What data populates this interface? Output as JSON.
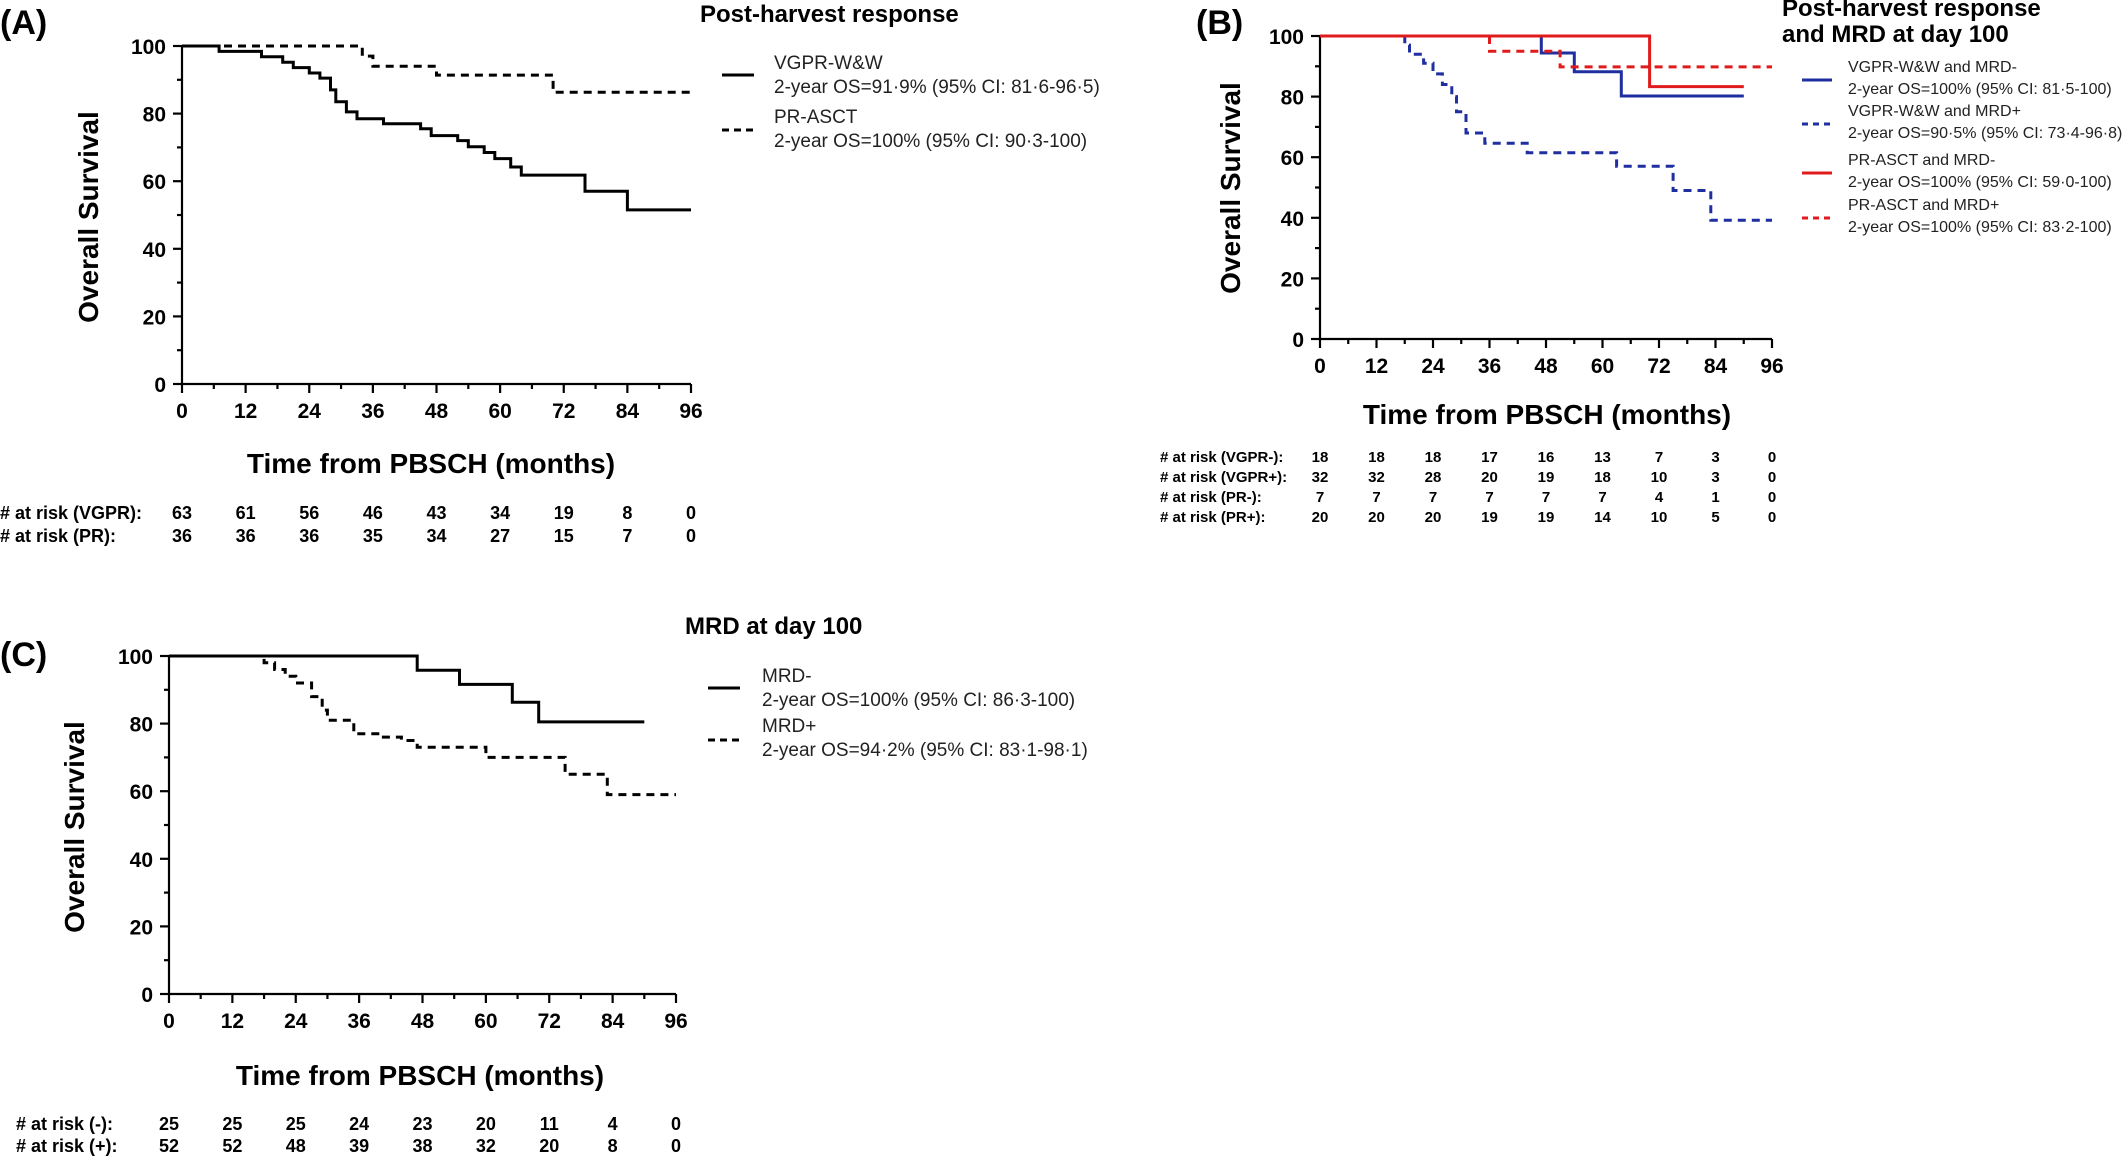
{
  "chart_data": [
    {
      "panel": "(A)",
      "type": "line",
      "title": "Post-harvest response",
      "xlabel": "Time from PBSCH (months)",
      "ylabel": "Overall Survival",
      "xlim": [
        0,
        96
      ],
      "ylim": [
        0,
        100
      ],
      "x_ticks": [
        "0",
        "12",
        "24",
        "36",
        "48",
        "60",
        "72",
        "84",
        "96"
      ],
      "y_ticks": [
        "0",
        "20",
        "40",
        "60",
        "80",
        "100"
      ],
      "legend_position": "right",
      "series": [
        {
          "name": "VGPR-W&W",
          "legend_text": "2-year OS=91·9% (95% CI: 81·6-96·5)",
          "color": "#000000",
          "dash": "solid",
          "points": [
            [
              0,
              100
            ],
            [
              7,
              100
            ],
            [
              7,
              98.4
            ],
            [
              15,
              98.4
            ],
            [
              15,
              96.8
            ],
            [
              19,
              96.8
            ],
            [
              19,
              95.2
            ],
            [
              21,
              95.2
            ],
            [
              21,
              93.6
            ],
            [
              24,
              93.6
            ],
            [
              24,
              92
            ],
            [
              26,
              92
            ],
            [
              26,
              90.5
            ],
            [
              28,
              90.5
            ],
            [
              28,
              87
            ],
            [
              29,
              87
            ],
            [
              29,
              83.5
            ],
            [
              31,
              83.5
            ],
            [
              31,
              80.5
            ],
            [
              33,
              80.5
            ],
            [
              33,
              78.5
            ],
            [
              38,
              78.5
            ],
            [
              38,
              77
            ],
            [
              45,
              77
            ],
            [
              45,
              75.5
            ],
            [
              47,
              75.5
            ],
            [
              47,
              73.5
            ],
            [
              52,
              73.5
            ],
            [
              52,
              72
            ],
            [
              54,
              72
            ],
            [
              54,
              70.2
            ],
            [
              57,
              70.2
            ],
            [
              57,
              68.5
            ],
            [
              59,
              68.5
            ],
            [
              59,
              66.7
            ],
            [
              62,
              66.7
            ],
            [
              62,
              64.2
            ],
            [
              64,
              64.2
            ],
            [
              64,
              61.8
            ],
            [
              76,
              61.8
            ],
            [
              76,
              57
            ],
            [
              84,
              57
            ],
            [
              84,
              51.5
            ],
            [
              96,
              51.5
            ]
          ]
        },
        {
          "name": "PR-ASCT",
          "legend_text": "2-year OS=100% (95% CI: 90·3-100)",
          "color": "#000000",
          "dash": "dashed",
          "points": [
            [
              0,
              100
            ],
            [
              34,
              100
            ],
            [
              34,
              97
            ],
            [
              36,
              97
            ],
            [
              36,
              94
            ],
            [
              48,
              94
            ],
            [
              48,
              91.4
            ],
            [
              70,
              91.4
            ],
            [
              70,
              86.3
            ],
            [
              96,
              86.3
            ]
          ]
        }
      ],
      "risk_table": {
        "rows": [
          {
            "label": "# at risk (VGPR):",
            "values": [
              "63",
              "61",
              "56",
              "46",
              "43",
              "34",
              "19",
              "8",
              "0"
            ]
          },
          {
            "label": "# at risk (PR):",
            "values": [
              "36",
              "36",
              "36",
              "35",
              "34",
              "27",
              "15",
              "7",
              "0"
            ]
          }
        ]
      }
    },
    {
      "panel": "(B)",
      "type": "line",
      "title_lines": [
        "Post-harvest response",
        "and MRD at day 100"
      ],
      "xlabel": "Time from PBSCH (months)",
      "ylabel": "Overall Survival",
      "xlim": [
        0,
        96
      ],
      "ylim": [
        0,
        100
      ],
      "x_ticks": [
        "0",
        "12",
        "24",
        "36",
        "48",
        "60",
        "72",
        "84",
        "96"
      ],
      "y_ticks": [
        "0",
        "20",
        "40",
        "60",
        "80",
        "100"
      ],
      "legend_position": "right",
      "series": [
        {
          "name": "VGPR-W&W and MRD-",
          "legend_text": "2-year OS=100% (95% CI: 81·5-100)",
          "color": "#1f2fa0",
          "dash": "solid",
          "points": [
            [
              0,
              100
            ],
            [
              47,
              100
            ],
            [
              47,
              94.4
            ],
            [
              54,
              94.4
            ],
            [
              54,
              88.2
            ],
            [
              64,
              88.2
            ],
            [
              64,
              80.2
            ],
            [
              90,
              80.2
            ]
          ]
        },
        {
          "name": "VGPR-W&W and MRD+",
          "legend_text": "2-year OS=90·5% (95% CI: 73·4-96·8)",
          "color": "#1f2fa0",
          "dash": "dashed",
          "points": [
            [
              0,
              100
            ],
            [
              18,
              100
            ],
            [
              18,
              97
            ],
            [
              19,
              97
            ],
            [
              19,
              94
            ],
            [
              22,
              94
            ],
            [
              22,
              91
            ],
            [
              24,
              91
            ],
            [
              24,
              87.5
            ],
            [
              26,
              87.5
            ],
            [
              26,
              84
            ],
            [
              28,
              84
            ],
            [
              28,
              80
            ],
            [
              29,
              80
            ],
            [
              29,
              75
            ],
            [
              31,
              75
            ],
            [
              31,
              68
            ],
            [
              35,
              68
            ],
            [
              35,
              64.6
            ],
            [
              44,
              64.6
            ],
            [
              44,
              61.5
            ],
            [
              63,
              61.5
            ],
            [
              63,
              57
            ],
            [
              75,
              57
            ],
            [
              75,
              49
            ],
            [
              83,
              49
            ],
            [
              83,
              39.2
            ],
            [
              96,
              39.2
            ]
          ]
        },
        {
          "name": "PR-ASCT and MRD-",
          "legend_text": "2-year OS=100% (95% CI: 59·0-100)",
          "color": "#e01b1b",
          "dash": "solid",
          "points": [
            [
              0,
              100
            ],
            [
              70,
              100
            ],
            [
              70,
              83.3
            ],
            [
              90,
              83.3
            ]
          ]
        },
        {
          "name": "PR-ASCT and MRD+",
          "legend_text": "2-year OS=100% (95% CI: 83·2-100)",
          "color": "#e01b1b",
          "dash": "dashed",
          "points": [
            [
              36,
              100
            ],
            [
              36,
              95
            ],
            [
              51,
              95
            ],
            [
              51,
              89.8
            ],
            [
              96,
              89.8
            ]
          ]
        }
      ],
      "risk_table": {
        "rows": [
          {
            "label": "# at risk (VGPR-):",
            "values": [
              "18",
              "18",
              "18",
              "17",
              "16",
              "13",
              "7",
              "3",
              "0"
            ]
          },
          {
            "label": "# at risk (VGPR+):",
            "values": [
              "32",
              "32",
              "28",
              "20",
              "19",
              "18",
              "10",
              "3",
              "0"
            ]
          },
          {
            "label": "# at risk (PR-):",
            "values": [
              "7",
              "7",
              "7",
              "7",
              "7",
              "7",
              "4",
              "1",
              "0"
            ]
          },
          {
            "label": "# at risk (PR+):",
            "values": [
              "20",
              "20",
              "20",
              "19",
              "19",
              "14",
              "10",
              "5",
              "0"
            ]
          }
        ]
      }
    },
    {
      "panel": "(C)",
      "type": "line",
      "title": "MRD at day 100",
      "xlabel": "Time from PBSCH (months)",
      "ylabel": "Overall Survival",
      "xlim": [
        0,
        96
      ],
      "ylim": [
        0,
        100
      ],
      "x_ticks": [
        "0",
        "12",
        "24",
        "36",
        "48",
        "60",
        "72",
        "84",
        "96"
      ],
      "y_ticks": [
        "0",
        "20",
        "40",
        "60",
        "80",
        "100"
      ],
      "legend_position": "right",
      "series": [
        {
          "name": "MRD-",
          "legend_text": "2-year OS=100% (95% CI: 86·3-100)",
          "color": "#000000",
          "dash": "solid",
          "points": [
            [
              0,
              100
            ],
            [
              47,
              100
            ],
            [
              47,
              95.8
            ],
            [
              55,
              95.8
            ],
            [
              55,
              91.6
            ],
            [
              65,
              91.6
            ],
            [
              65,
              86.3
            ],
            [
              70,
              86.3
            ],
            [
              70,
              80.5
            ],
            [
              90,
              80.5
            ]
          ]
        },
        {
          "name": "MRD+",
          "legend_text": "2-year OS=94·2% (95% CI: 83·1-98·1)",
          "color": "#000000",
          "dash": "dashed",
          "points": [
            [
              0,
              100
            ],
            [
              18,
              100
            ],
            [
              18,
              98
            ],
            [
              20,
              98
            ],
            [
              20,
              96
            ],
            [
              22,
              96
            ],
            [
              22,
              94
            ],
            [
              24,
              94
            ],
            [
              24,
              92
            ],
            [
              27,
              92
            ],
            [
              27,
              88
            ],
            [
              29,
              88
            ],
            [
              29,
              84
            ],
            [
              30,
              84
            ],
            [
              30,
              81
            ],
            [
              35,
              81
            ],
            [
              35,
              77
            ],
            [
              40,
              77
            ],
            [
              40,
              76
            ],
            [
              44,
              76
            ],
            [
              44,
              75
            ],
            [
              47,
              75
            ],
            [
              47,
              73
            ],
            [
              60,
              73
            ],
            [
              60,
              70
            ],
            [
              75,
              70
            ],
            [
              75,
              65
            ],
            [
              83,
              65
            ],
            [
              83,
              59
            ],
            [
              96,
              59
            ]
          ]
        }
      ],
      "risk_table": {
        "rows": [
          {
            "label": "# at risk (-):",
            "values": [
              "25",
              "25",
              "25",
              "24",
              "23",
              "20",
              "11",
              "4",
              "0"
            ]
          },
          {
            "label": "# at risk (+):",
            "values": [
              "52",
              "52",
              "48",
              "39",
              "38",
              "32",
              "20",
              "8",
              "0"
            ]
          }
        ]
      }
    }
  ]
}
